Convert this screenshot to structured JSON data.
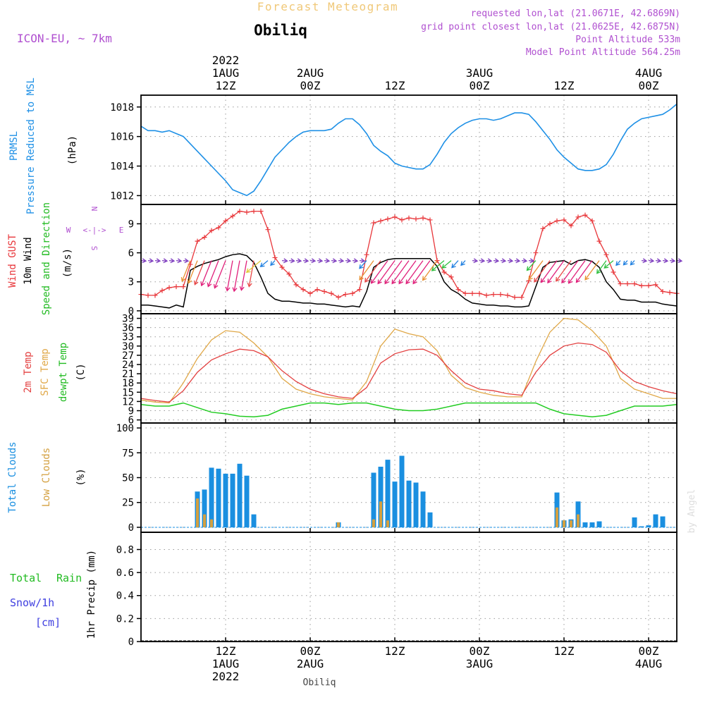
{
  "header": {
    "title": "Forecast Meteogram",
    "location": "Obiliq",
    "model": "ICON-EU, ~ 7km",
    "requested": "requested lon,lat (21.0671E, 42.6869N)",
    "gridpoint": "grid point closest lon,lat (21.0625E, 42.6875N)",
    "point_alt": "Point Altitude 533m",
    "model_alt": "Model Point Altitude 564.25m",
    "credit": "by Angel",
    "footer_location": "Obiliq"
  },
  "time_axis": {
    "top_labels": [
      {
        "lines": [
          "2022",
          "1AUG",
          "12Z"
        ],
        "hour": 12
      },
      {
        "lines": [
          "2AUG",
          "00Z"
        ],
        "hour": 24
      },
      {
        "lines": [
          "12Z"
        ],
        "hour": 36
      },
      {
        "lines": [
          "3AUG",
          "00Z"
        ],
        "hour": 48
      },
      {
        "lines": [
          "12Z"
        ],
        "hour": 60
      },
      {
        "lines": [
          "4AUG",
          "00Z"
        ],
        "hour": 72
      }
    ],
    "bottom_labels": [
      {
        "lines": [
          "12Z",
          "1AUG",
          "2022"
        ],
        "hour": 12
      },
      {
        "lines": [
          "00Z",
          "2AUG"
        ],
        "hour": 24
      },
      {
        "lines": [
          "12Z"
        ],
        "hour": 36
      },
      {
        "lines": [
          "00Z",
          "3AUG"
        ],
        "hour": 48
      },
      {
        "lines": [
          "12Z"
        ],
        "hour": 60
      },
      {
        "lines": [
          "00Z",
          "4AUG"
        ],
        "hour": 72
      }
    ]
  },
  "panels": {
    "pressure": {
      "labels": [
        "PRMSL",
        "Pressure Reduced to MSL"
      ],
      "unit": "(hPa)",
      "ticks": [
        "1012",
        "1014",
        "1016",
        "1018"
      ]
    },
    "wind": {
      "labels": [
        "Wind GUST",
        "10m Wind",
        "Speed and Direction"
      ],
      "unit": "(m/s)",
      "ticks": [
        "0",
        "3",
        "6",
        "9"
      ],
      "compass": {
        "n": "N",
        "s": "S",
        "e": "E",
        "w": "W"
      }
    },
    "temp": {
      "labels": [
        "2m Temp",
        "SFC Temp",
        "dewpt Temp"
      ],
      "unit": "(C)",
      "ticks": [
        "6",
        "9",
        "12",
        "15",
        "18",
        "21",
        "24",
        "27",
        "30",
        "33",
        "36",
        "39"
      ]
    },
    "clouds": {
      "labels": [
        "Total Clouds",
        "Low Clouds"
      ],
      "unit": "(%)",
      "ticks": [
        "0",
        "25",
        "50",
        "75",
        "100"
      ]
    },
    "precip": {
      "labels": [
        "Total",
        "Rain",
        "Snow/1h",
        "[cm]"
      ],
      "unit": "1hr Precip (mm)",
      "ticks": [
        "0",
        "0.2",
        "0.4",
        "0.6",
        "0.8"
      ]
    }
  },
  "colors": {
    "pressure": "#1e90e6",
    "gust": "#e8363a",
    "wind": "#000000",
    "t2m": "#e34040",
    "sfc": "#e0a848",
    "dew": "#22cc22",
    "total_cloud": "#1a8fe0",
    "low_cloud": "#d4a040",
    "title": "#f0c878",
    "purple": "#b050d0",
    "green_label": "#22bb22",
    "blue_label": "#4040e0"
  },
  "chart_data": [
    {
      "type": "line",
      "title": "PRMSL Pressure Reduced to MSL",
      "ylabel": "(hPa)",
      "ylim": [
        1011.4,
        1018.8
      ],
      "x_unit": "hours since 2022-08-01 00Z",
      "x": [
        0,
        1,
        2,
        3,
        4,
        5,
        6,
        7,
        8,
        9,
        10,
        11,
        12,
        13,
        14,
        15,
        16,
        17,
        18,
        19,
        20,
        21,
        22,
        23,
        24,
        25,
        26,
        27,
        28,
        29,
        30,
        31,
        32,
        33,
        34,
        35,
        36,
        37,
        38,
        39,
        40,
        41,
        42,
        43,
        44,
        45,
        46,
        47,
        48,
        49,
        50,
        51,
        52,
        53,
        54,
        55,
        56,
        57,
        58,
        59,
        60,
        61,
        62,
        63,
        64,
        65,
        66,
        67,
        68,
        69,
        70,
        71,
        72,
        73,
        74,
        75,
        76
      ],
      "series": [
        {
          "name": "PRMSL",
          "values": [
            1016.7,
            1016.4,
            1016.4,
            1016.3,
            1016.4,
            1016.2,
            1016.0,
            1015.5,
            1015.0,
            1014.5,
            1014.0,
            1013.5,
            1013.0,
            1012.4,
            1012.2,
            1012.0,
            1012.3,
            1013.0,
            1013.8,
            1014.6,
            1015.1,
            1015.6,
            1016.0,
            1016.3,
            1016.4,
            1016.4,
            1016.4,
            1016.5,
            1016.9,
            1017.2,
            1017.2,
            1016.8,
            1016.2,
            1015.4,
            1015.0,
            1014.7,
            1014.2,
            1014.0,
            1013.9,
            1013.8,
            1013.8,
            1014.1,
            1014.8,
            1015.6,
            1016.2,
            1016.6,
            1016.9,
            1017.1,
            1017.2,
            1017.2,
            1017.1,
            1017.2,
            1017.4,
            1017.6,
            1017.6,
            1017.5,
            1017.0,
            1016.4,
            1015.8,
            1015.1,
            1014.6,
            1014.2,
            1013.8,
            1013.7,
            1013.7,
            1013.8,
            1014.1,
            1014.8,
            1015.7,
            1016.5,
            1016.9,
            1017.2,
            1017.3,
            1017.4,
            1017.5,
            1017.8,
            1018.2
          ]
        }
      ]
    },
    {
      "type": "line",
      "title": "Wind GUST / 10m Wind",
      "ylabel": "(m/s)",
      "ylim": [
        -0.3,
        11
      ],
      "x_unit": "hours since 2022-08-01 00Z",
      "x": [
        0,
        1,
        2,
        3,
        4,
        5,
        6,
        7,
        8,
        9,
        10,
        11,
        12,
        13,
        14,
        15,
        16,
        17,
        18,
        19,
        20,
        21,
        22,
        23,
        24,
        25,
        26,
        27,
        28,
        29,
        30,
        31,
        32,
        33,
        34,
        35,
        36,
        37,
        38,
        39,
        40,
        41,
        42,
        43,
        44,
        45,
        46,
        47,
        48,
        49,
        50,
        51,
        52,
        53,
        54,
        55,
        56,
        57,
        58,
        59,
        60,
        61,
        62,
        63,
        64,
        65,
        66,
        67,
        68,
        69,
        70,
        71,
        72,
        73,
        74,
        75,
        76
      ],
      "series": [
        {
          "name": "Wind GUST",
          "values": [
            1.7,
            1.6,
            1.6,
            2.1,
            2.4,
            2.5,
            2.5,
            4.8,
            7.2,
            7.6,
            8.3,
            8.6,
            9.3,
            9.8,
            10.3,
            10.2,
            10.3,
            10.3,
            8.4,
            5.5,
            4.5,
            3.8,
            2.7,
            2.2,
            1.8,
            2.2,
            2.0,
            1.8,
            1.4,
            1.7,
            1.8,
            2.2,
            5.8,
            9.1,
            9.3,
            9.5,
            9.7,
            9.4,
            9.6,
            9.5,
            9.6,
            9.4,
            5.2,
            4.0,
            3.5,
            2.2,
            1.8,
            1.8,
            1.8,
            1.6,
            1.7,
            1.7,
            1.6,
            1.4,
            1.4,
            3.1,
            6.0,
            8.5,
            9.0,
            9.3,
            9.4,
            8.8,
            9.7,
            9.9,
            9.3,
            7.2,
            5.8,
            4.0,
            2.8,
            2.8,
            2.8,
            2.6,
            2.6,
            2.7,
            2.0,
            1.9,
            1.8
          ]
        },
        {
          "name": "10m Wind",
          "values": [
            0.6,
            0.6,
            0.5,
            0.4,
            0.3,
            0.6,
            0.4,
            4.2,
            4.6,
            4.9,
            5.1,
            5.3,
            5.6,
            5.8,
            5.9,
            5.7,
            5.0,
            3.5,
            1.8,
            1.2,
            1.0,
            1.0,
            0.9,
            0.8,
            0.8,
            0.7,
            0.7,
            0.6,
            0.5,
            0.4,
            0.5,
            0.4,
            2.0,
            4.5,
            5.0,
            5.3,
            5.4,
            5.4,
            5.4,
            5.4,
            5.4,
            5.4,
            4.6,
            3.0,
            2.2,
            1.8,
            1.2,
            0.8,
            0.7,
            0.6,
            0.6,
            0.5,
            0.5,
            0.4,
            0.4,
            0.5,
            2.5,
            4.5,
            5.0,
            5.1,
            5.2,
            4.8,
            5.2,
            5.3,
            5.1,
            4.5,
            3.0,
            2.2,
            1.2,
            1.1,
            1.1,
            0.9,
            0.9,
            0.9,
            0.7,
            0.6,
            0.5
          ]
        }
      ]
    },
    {
      "type": "line",
      "title": "2m Temp / SFC Temp / dewpt Temp",
      "ylabel": "(C)",
      "ylim": [
        5,
        40.5
      ],
      "x_unit": "hours since 2022-08-01 00Z",
      "x": [
        0,
        2,
        4,
        6,
        8,
        10,
        12,
        14,
        16,
        18,
        20,
        22,
        24,
        26,
        28,
        30,
        32,
        34,
        36,
        38,
        40,
        42,
        44,
        46,
        48,
        50,
        52,
        54,
        56,
        58,
        60,
        62,
        64,
        66,
        68,
        70,
        72,
        74,
        76
      ],
      "series": [
        {
          "name": "2m Temp",
          "values": [
            13.0,
            12.3,
            11.8,
            15.5,
            21.5,
            25.5,
            27.5,
            29.0,
            28.5,
            26.5,
            22.0,
            18.5,
            16.0,
            14.5,
            13.5,
            13.0,
            16.5,
            24.5,
            27.5,
            28.8,
            29.0,
            27.0,
            22.0,
            18.0,
            16.0,
            15.5,
            14.5,
            14.0,
            21.5,
            27.0,
            30.0,
            31.0,
            30.5,
            28.0,
            22.0,
            18.5,
            16.8,
            15.5,
            14.5
          ]
        },
        {
          "name": "SFC Temp",
          "values": [
            12.5,
            11.8,
            11.5,
            18.0,
            26.0,
            32.0,
            35.0,
            34.5,
            31.0,
            26.5,
            19.5,
            16.0,
            14.5,
            13.5,
            13.0,
            12.5,
            18.5,
            30.0,
            35.5,
            34.0,
            33.0,
            28.5,
            20.5,
            16.5,
            15.0,
            14.0,
            13.5,
            13.5,
            25.0,
            34.5,
            39.0,
            38.5,
            35.0,
            30.0,
            19.5,
            16.0,
            14.5,
            13.0,
            13.0
          ]
        },
        {
          "name": "dewpt Temp",
          "values": [
            11.0,
            10.5,
            10.5,
            11.5,
            10.0,
            8.5,
            8.0,
            7.2,
            7.0,
            7.5,
            9.5,
            10.5,
            11.5,
            11.5,
            11.0,
            11.5,
            11.5,
            10.5,
            9.5,
            9.0,
            9.0,
            9.5,
            10.5,
            11.5,
            11.5,
            11.5,
            11.5,
            11.5,
            11.5,
            9.5,
            8.0,
            7.5,
            7.0,
            7.5,
            9.0,
            10.5,
            10.5,
            10.5,
            11.0
          ]
        }
      ]
    },
    {
      "type": "bar",
      "title": "Total Clouds / Low Clouds",
      "ylabel": "(%)",
      "ylim": [
        -5,
        105
      ],
      "x_unit": "hours since 2022-08-01 00Z",
      "x": [
        8,
        9,
        10,
        11,
        12,
        13,
        14,
        15,
        16,
        17,
        28,
        33,
        34,
        35,
        36,
        37,
        38,
        39,
        40,
        41,
        42,
        59,
        60,
        61,
        62,
        63,
        64,
        65,
        70,
        71,
        72,
        73,
        74
      ],
      "series": [
        {
          "name": "Total Clouds",
          "values": [
            36,
            38,
            60,
            59,
            54,
            54,
            64,
            52,
            13,
            0,
            5,
            55,
            61,
            68,
            46,
            72,
            47,
            45,
            36,
            15,
            0,
            35,
            7,
            8,
            26,
            5,
            5,
            6,
            10,
            1,
            2,
            13,
            11
          ]
        },
        {
          "name": "Low Clouds",
          "values": [
            29,
            13,
            8,
            0,
            0,
            0,
            0,
            0,
            0,
            0,
            5,
            8,
            26,
            7,
            0,
            0,
            0,
            0,
            0,
            0,
            0,
            20,
            7,
            7,
            13,
            0,
            0,
            0,
            0,
            0,
            0,
            0,
            0
          ]
        }
      ]
    },
    {
      "type": "bar",
      "title": "1hr Precip",
      "ylabel": "1hr Precip (mm)",
      "ylim": [
        0,
        0.95
      ],
      "x_unit": "hours since 2022-08-01 00Z",
      "x": [],
      "series": [
        {
          "name": "Total Rain",
          "values": []
        }
      ]
    }
  ]
}
